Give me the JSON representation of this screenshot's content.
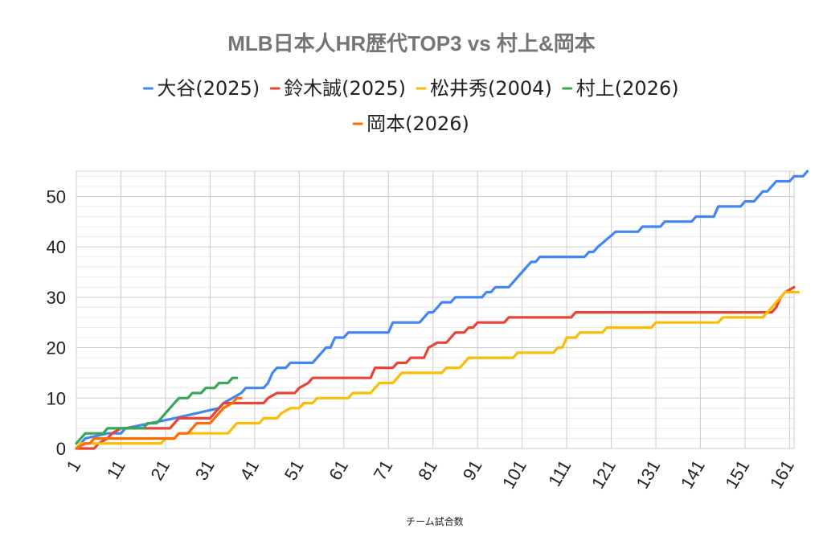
{
  "chart_data": {
    "type": "line",
    "title": "MLB日本人HR歴代TOP3 vs 村上&岡本",
    "xlabel": "チーム試合数",
    "ylabel": "",
    "xlim": [
      1,
      162
    ],
    "ylim": [
      0,
      55
    ],
    "xticks": [
      1,
      11,
      21,
      31,
      41,
      51,
      61,
      71,
      81,
      91,
      101,
      111,
      121,
      131,
      141,
      151,
      161
    ],
    "yticks": [
      0,
      10,
      20,
      30,
      40,
      50
    ],
    "grid": true,
    "legend_position": "top",
    "series": [
      {
        "name": "大谷(2025)",
        "color": "#4285f4",
        "points": [
          [
            1,
            0
          ],
          [
            2,
            1
          ],
          [
            3,
            2
          ],
          [
            8,
            3
          ],
          [
            11,
            3
          ],
          [
            12,
            4
          ],
          [
            23,
            6
          ],
          [
            33,
            8
          ],
          [
            34,
            9
          ],
          [
            36,
            10
          ],
          [
            38,
            11
          ],
          [
            39,
            12
          ],
          [
            43,
            12
          ],
          [
            44,
            13
          ],
          [
            45,
            15
          ],
          [
            46,
            16
          ],
          [
            48,
            16
          ],
          [
            49,
            17
          ],
          [
            54,
            17
          ],
          [
            55,
            18
          ],
          [
            56,
            19
          ],
          [
            57,
            20
          ],
          [
            58,
            20
          ],
          [
            59,
            22
          ],
          [
            61,
            22
          ],
          [
            62,
            23
          ],
          [
            71,
            23
          ],
          [
            72,
            25
          ],
          [
            78,
            25
          ],
          [
            79,
            26
          ],
          [
            80,
            27
          ],
          [
            81,
            27
          ],
          [
            82,
            28
          ],
          [
            83,
            29
          ],
          [
            85,
            29
          ],
          [
            86,
            30
          ],
          [
            92,
            30
          ],
          [
            93,
            31
          ],
          [
            94,
            31
          ],
          [
            95,
            32
          ],
          [
            98,
            32
          ],
          [
            100,
            34
          ],
          [
            101,
            35
          ],
          [
            102,
            36
          ],
          [
            103,
            37
          ],
          [
            104,
            37
          ],
          [
            105,
            38
          ],
          [
            115,
            38
          ],
          [
            116,
            39
          ],
          [
            117,
            39
          ],
          [
            118,
            40
          ],
          [
            122,
            43
          ],
          [
            127,
            43
          ],
          [
            128,
            44
          ],
          [
            132,
            44
          ],
          [
            133,
            45
          ],
          [
            139,
            45
          ],
          [
            140,
            46
          ],
          [
            144,
            46
          ],
          [
            145,
            48
          ],
          [
            150,
            48
          ],
          [
            151,
            49
          ],
          [
            153,
            49
          ],
          [
            154,
            50
          ],
          [
            155,
            51
          ],
          [
            156,
            51
          ],
          [
            157,
            52
          ],
          [
            158,
            53
          ],
          [
            161,
            53
          ],
          [
            162,
            54
          ],
          [
            164,
            54
          ],
          [
            165,
            55
          ]
        ]
      },
      {
        "name": "鈴木誠(2025)",
        "color": "#ea4335",
        "points": [
          [
            1,
            0
          ],
          [
            5,
            0
          ],
          [
            6,
            1
          ],
          [
            8,
            2
          ],
          [
            9,
            3
          ],
          [
            11,
            4
          ],
          [
            22,
            4
          ],
          [
            23,
            5
          ],
          [
            24,
            6
          ],
          [
            31,
            6
          ],
          [
            32,
            7
          ],
          [
            33,
            8
          ],
          [
            34,
            9
          ],
          [
            43,
            9
          ],
          [
            44,
            10
          ],
          [
            46,
            11
          ],
          [
            50,
            11
          ],
          [
            51,
            12
          ],
          [
            53,
            13
          ],
          [
            54,
            14
          ],
          [
            67,
            14
          ],
          [
            68,
            16
          ],
          [
            72,
            16
          ],
          [
            73,
            17
          ],
          [
            75,
            17
          ],
          [
            76,
            18
          ],
          [
            79,
            18
          ],
          [
            80,
            20
          ],
          [
            82,
            21
          ],
          [
            84,
            21
          ],
          [
            85,
            22
          ],
          [
            86,
            23
          ],
          [
            88,
            23
          ],
          [
            89,
            24
          ],
          [
            90,
            24
          ],
          [
            91,
            25
          ],
          [
            97,
            25
          ],
          [
            98,
            26
          ],
          [
            112,
            26
          ],
          [
            113,
            27
          ],
          [
            157,
            27
          ],
          [
            158,
            28
          ],
          [
            159,
            30
          ],
          [
            160,
            31
          ],
          [
            162,
            32
          ]
        ]
      },
      {
        "name": "松井秀(2004)",
        "color": "#fbbc04",
        "points": [
          [
            1,
            0
          ],
          [
            2,
            1
          ],
          [
            20,
            1
          ],
          [
            21,
            2
          ],
          [
            23,
            2
          ],
          [
            24,
            3
          ],
          [
            35,
            3
          ],
          [
            36,
            4
          ],
          [
            37,
            5
          ],
          [
            42,
            5
          ],
          [
            43,
            6
          ],
          [
            46,
            6
          ],
          [
            47,
            7
          ],
          [
            49,
            8
          ],
          [
            51,
            8
          ],
          [
            52,
            9
          ],
          [
            54,
            9
          ],
          [
            55,
            10
          ],
          [
            62,
            10
          ],
          [
            63,
            11
          ],
          [
            67,
            11
          ],
          [
            68,
            12
          ],
          [
            69,
            13
          ],
          [
            72,
            13
          ],
          [
            73,
            14
          ],
          [
            74,
            15
          ],
          [
            83,
            15
          ],
          [
            84,
            16
          ],
          [
            87,
            16
          ],
          [
            88,
            17
          ],
          [
            89,
            18
          ],
          [
            99,
            18
          ],
          [
            100,
            19
          ],
          [
            108,
            19
          ],
          [
            109,
            20
          ],
          [
            110,
            20
          ],
          [
            111,
            22
          ],
          [
            113,
            22
          ],
          [
            114,
            23
          ],
          [
            119,
            23
          ],
          [
            120,
            24
          ],
          [
            130,
            24
          ],
          [
            131,
            25
          ],
          [
            145,
            25
          ],
          [
            146,
            26
          ],
          [
            155,
            26
          ],
          [
            156,
            27
          ],
          [
            157,
            28
          ],
          [
            159,
            30
          ],
          [
            160,
            31
          ],
          [
            163,
            31
          ]
        ]
      },
      {
        "name": "村上(2026)",
        "color": "#34a853",
        "points": [
          [
            1,
            1
          ],
          [
            2,
            2
          ],
          [
            3,
            3
          ],
          [
            7,
            3
          ],
          [
            8,
            4
          ],
          [
            16,
            4
          ],
          [
            17,
            5
          ],
          [
            19,
            5
          ],
          [
            20,
            6
          ],
          [
            21,
            7
          ],
          [
            22,
            8
          ],
          [
            23,
            9
          ],
          [
            24,
            10
          ],
          [
            26,
            10
          ],
          [
            27,
            11
          ],
          [
            29,
            11
          ],
          [
            30,
            12
          ],
          [
            32,
            12
          ],
          [
            33,
            13
          ],
          [
            35,
            13
          ],
          [
            36,
            14
          ],
          [
            37,
            14
          ]
        ]
      },
      {
        "name": "岡本(2026)",
        "color": "#ff6d01",
        "points": [
          [
            1,
            0
          ],
          [
            3,
            1
          ],
          [
            4,
            1
          ],
          [
            5,
            2
          ],
          [
            23,
            2
          ],
          [
            24,
            3
          ],
          [
            26,
            3
          ],
          [
            27,
            4
          ],
          [
            28,
            5
          ],
          [
            31,
            5
          ],
          [
            32,
            6
          ],
          [
            33,
            7
          ],
          [
            34,
            8
          ],
          [
            36,
            9
          ],
          [
            37,
            10
          ],
          [
            38,
            10
          ]
        ]
      }
    ]
  }
}
